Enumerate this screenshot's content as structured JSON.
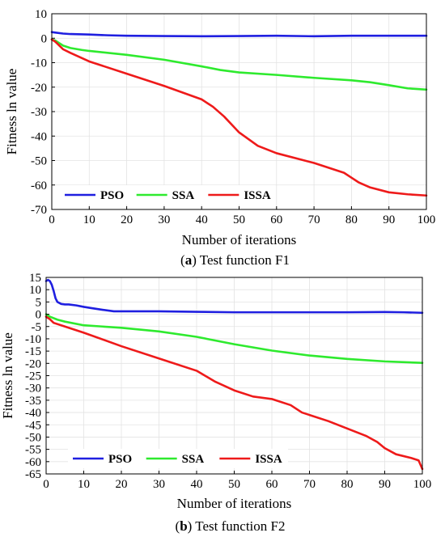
{
  "chart_data": [
    {
      "type": "line",
      "panel_letter": "a",
      "caption": "Test function F1",
      "xlabel": "Number of iterations",
      "ylabel": "Fitness ln value",
      "xlim": [
        0,
        100
      ],
      "ylim": [
        -70,
        10
      ],
      "xticks": [
        0,
        10,
        20,
        30,
        40,
        50,
        60,
        70,
        80,
        90,
        100
      ],
      "yticks": [
        10,
        0,
        -10,
        -20,
        -30,
        -40,
        -50,
        -60,
        -70
      ],
      "grid": true,
      "legend_position": "bottom-left",
      "series": [
        {
          "name": "PSO",
          "color": "#1f1fe0",
          "x": [
            0,
            1,
            3,
            5,
            10,
            15,
            20,
            30,
            40,
            50,
            60,
            70,
            80,
            90,
            100
          ],
          "y": [
            2.5,
            2.3,
            1.9,
            1.7,
            1.5,
            1.2,
            1.0,
            0.9,
            0.8,
            0.9,
            1.0,
            0.8,
            1.0,
            1.0,
            1.0
          ]
        },
        {
          "name": "SSA",
          "color": "#2eea2e",
          "x": [
            0,
            1,
            2,
            3,
            5,
            8,
            10,
            20,
            30,
            40,
            45,
            50,
            60,
            70,
            80,
            85,
            90,
            95,
            100
          ],
          "y": [
            -0.5,
            -1.0,
            -2.0,
            -3.0,
            -4.0,
            -4.8,
            -5.2,
            -6.8,
            -8.8,
            -11.5,
            -13.0,
            -14.0,
            -15.0,
            -16.2,
            -17.2,
            -18.0,
            -19.2,
            -20.5,
            -21.0
          ]
        },
        {
          "name": "ISSA",
          "color": "#ee1a1a",
          "x": [
            0,
            1,
            2,
            3,
            5,
            10,
            20,
            30,
            40,
            43,
            46,
            50,
            55,
            60,
            70,
            78,
            80,
            82,
            85,
            90,
            95,
            100
          ],
          "y": [
            -0.5,
            -1.5,
            -3.0,
            -4.5,
            -6.0,
            -9.5,
            -14.5,
            -19.5,
            -25.0,
            -28.0,
            -32.0,
            -38.5,
            -44.0,
            -47.0,
            -51.0,
            -55.0,
            -57.0,
            -59.0,
            -61.0,
            -63.0,
            -63.8,
            -64.3
          ]
        }
      ]
    },
    {
      "type": "line",
      "panel_letter": "b",
      "caption": "Test function F2",
      "xlabel": "Number of iterations",
      "ylabel": "Fitness ln value",
      "xlim": [
        0,
        100
      ],
      "ylim": [
        -65,
        15
      ],
      "xticks": [
        0,
        10,
        20,
        30,
        40,
        50,
        60,
        70,
        80,
        90,
        100
      ],
      "yticks": [
        15,
        10,
        5,
        0,
        -5,
        -10,
        -15,
        -20,
        -25,
        -30,
        -35,
        -40,
        -45,
        -50,
        -55,
        -60,
        -65
      ],
      "grid": true,
      "legend_position": "bottom-left",
      "series": [
        {
          "name": "PSO",
          "color": "#1f1fe0",
          "x": [
            0,
            0.5,
            1,
            1.5,
            2,
            2.5,
            3,
            4,
            5,
            6,
            8,
            10,
            12,
            15,
            18,
            20,
            30,
            40,
            50,
            60,
            70,
            80,
            90,
            95,
            100
          ],
          "y": [
            13.5,
            14.0,
            13.5,
            12.0,
            9.5,
            6.5,
            5.0,
            4.2,
            4.0,
            4.0,
            3.6,
            3.0,
            2.5,
            1.8,
            1.2,
            1.2,
            1.2,
            1.0,
            0.8,
            0.8,
            0.8,
            0.8,
            0.9,
            0.8,
            0.6
          ]
        },
        {
          "name": "SSA",
          "color": "#2eea2e",
          "x": [
            0,
            1,
            3,
            5,
            10,
            15,
            20,
            30,
            40,
            50,
            60,
            70,
            80,
            90,
            100
          ],
          "y": [
            0,
            -1.0,
            -2.2,
            -3.0,
            -4.5,
            -5.0,
            -5.5,
            -7.0,
            -9.2,
            -12.2,
            -14.8,
            -16.8,
            -18.2,
            -19.2,
            -19.8
          ]
        },
        {
          "name": "ISSA",
          "color": "#ee1a1a",
          "x": [
            0,
            1,
            2,
            5,
            10,
            20,
            30,
            40,
            45,
            50,
            55,
            60,
            65,
            68,
            70,
            75,
            80,
            85,
            88,
            90,
            93,
            97,
            99,
            100
          ],
          "y": [
            -1.0,
            -2.0,
            -3.5,
            -5.0,
            -7.5,
            -13.0,
            -18.0,
            -23.0,
            -27.5,
            -31.0,
            -33.5,
            -34.5,
            -37.0,
            -40.0,
            -41.0,
            -43.5,
            -46.5,
            -49.5,
            -52.0,
            -54.5,
            -57.0,
            -58.5,
            -59.5,
            -63.0
          ]
        }
      ]
    }
  ]
}
